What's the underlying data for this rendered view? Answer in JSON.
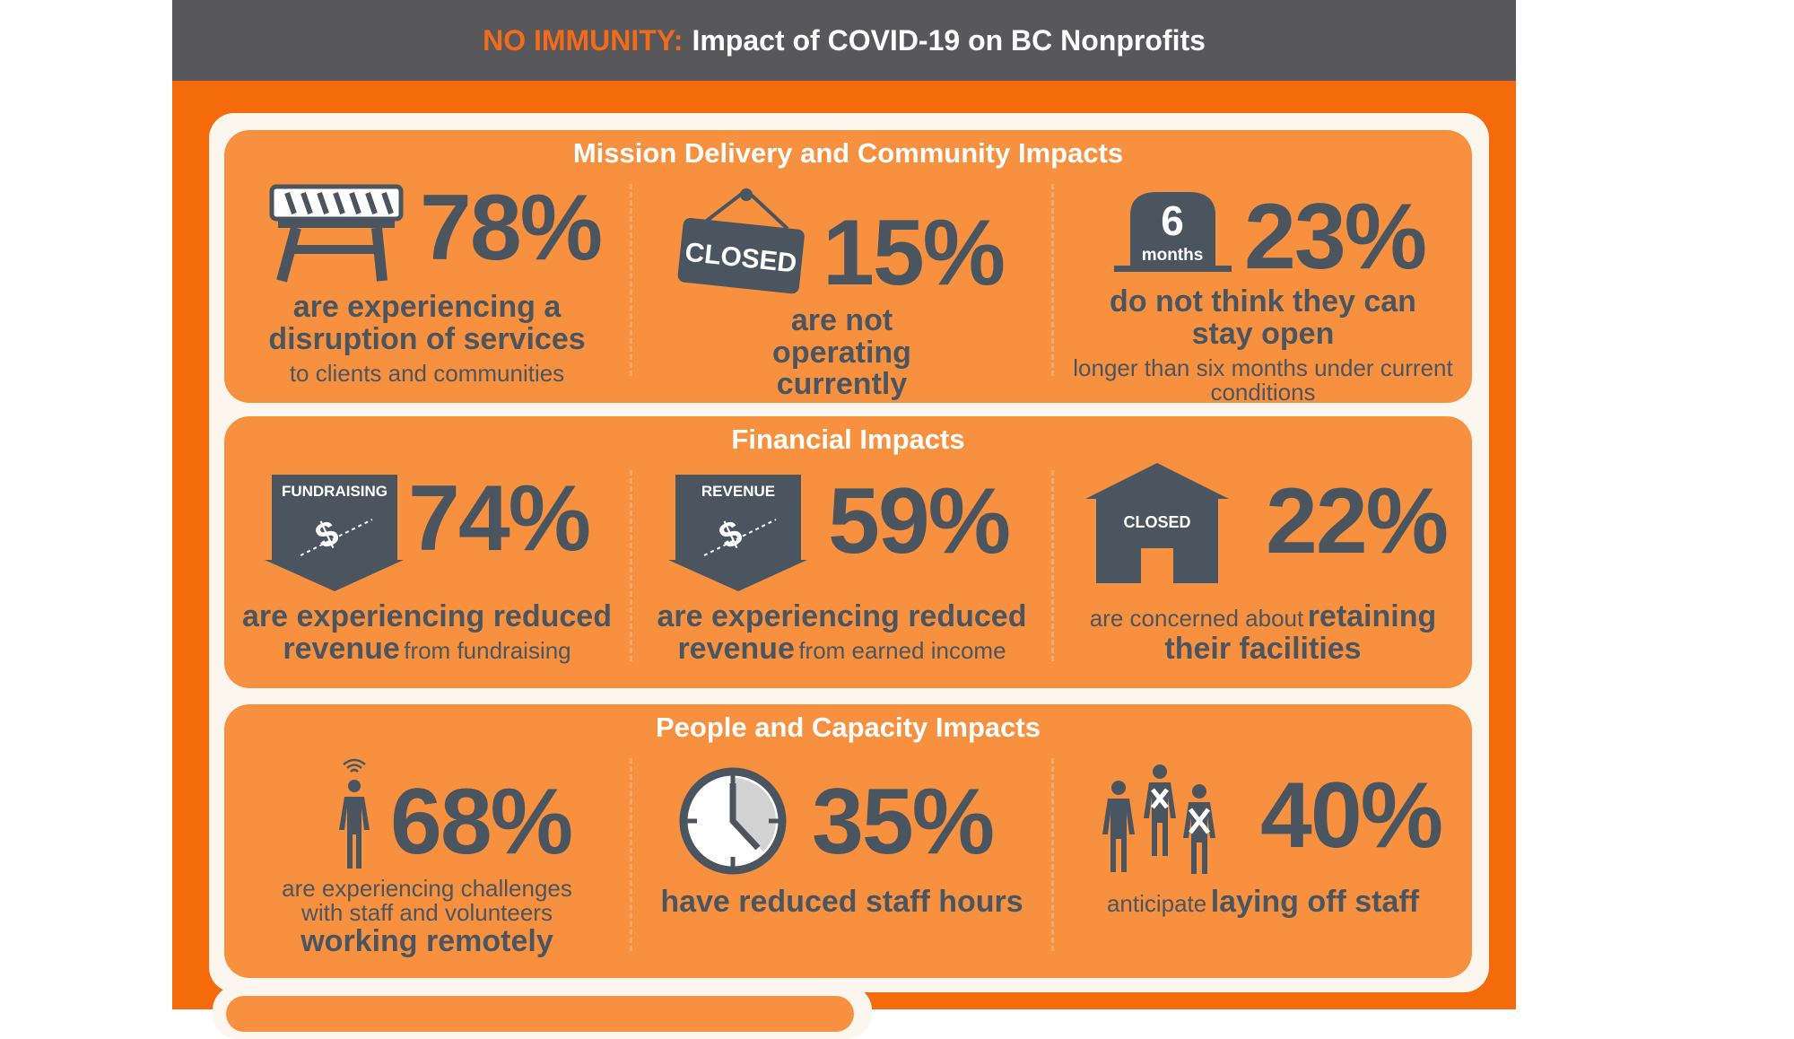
{
  "header": {
    "highlight": "NO IMMUNITY:",
    "title": "Impact of COVID-19 on BC Nonprofits"
  },
  "colors": {
    "header": "#58585a",
    "brand_orange": "#f56a0a",
    "section": "#f8913f",
    "text": "#4b5560"
  },
  "sections": [
    {
      "title": "Mission Delivery and Community Impacts",
      "items": [
        {
          "icon": "barricade-icon",
          "percent": "78%",
          "bold": "are experiencing a disruption of services",
          "normal": "to clients and communities"
        },
        {
          "icon": "closed-sign-icon",
          "icon_label": "CLOSED",
          "percent": "15%",
          "bold": "are not operating currently"
        },
        {
          "icon": "tombstone-icon",
          "icon_label_big": "6",
          "icon_label_small": "months",
          "percent": "23%",
          "bold": "do not think they can stay open",
          "normal": "longer than six months under current conditions"
        }
      ]
    },
    {
      "title": "Financial Impacts",
      "items": [
        {
          "icon": "fundraising-down-arrow-icon",
          "icon_label": "FUNDRAISING",
          "percent": "74%",
          "bold1": "are experiencing reduced",
          "bold2": "revenue",
          "normal": "from fundraising"
        },
        {
          "icon": "revenue-down-arrow-icon",
          "icon_label": "REVENUE",
          "percent": "59%",
          "bold1": "are experiencing reduced",
          "bold2": "revenue",
          "normal": "from earned income"
        },
        {
          "icon": "closed-building-icon",
          "icon_label": "CLOSED",
          "percent": "22%",
          "normal": "are concerned about",
          "bold": "retaining their facilities"
        }
      ]
    },
    {
      "title": "People and Capacity Impacts",
      "items": [
        {
          "icon": "remote-person-icon",
          "percent": "68%",
          "normal": "are experiencing challenges with staff and volunteers",
          "bold": "working remotely"
        },
        {
          "icon": "clock-icon",
          "percent": "35%",
          "bold": "have reduced staff hours"
        },
        {
          "icon": "layoff-people-icon",
          "percent": "40%",
          "normal": "anticipate",
          "bold": "laying off staff"
        }
      ]
    }
  ]
}
